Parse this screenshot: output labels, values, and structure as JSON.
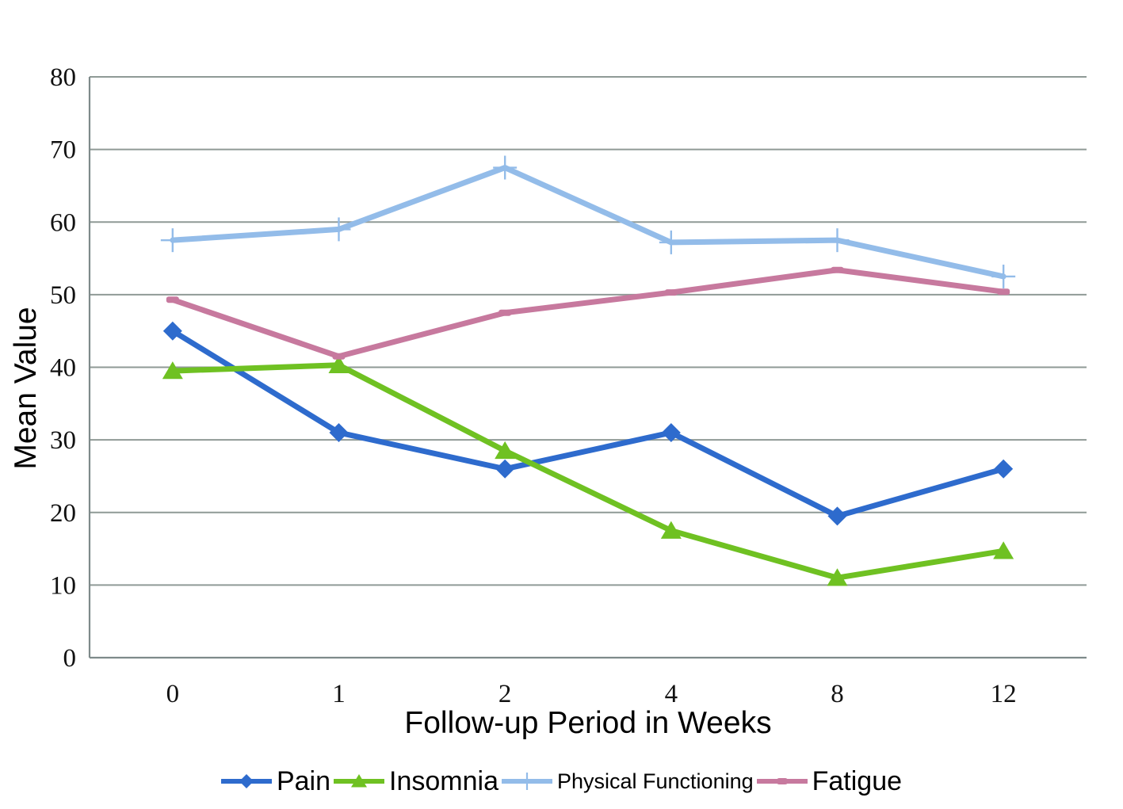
{
  "chart_data": {
    "type": "line",
    "title": "",
    "xlabel": "Follow-up Period in Weeks",
    "ylabel": "Mean Value",
    "categories": [
      "0",
      "1",
      "2",
      "4",
      "8",
      "12"
    ],
    "ylim": [
      0,
      80
    ],
    "ytick_interval": 10,
    "ytick_labels": [
      "0",
      "10",
      "20",
      "30",
      "40",
      "50",
      "60",
      "70",
      "80"
    ],
    "grid": true,
    "legend_position": "bottom",
    "series": [
      {
        "name": "Pain",
        "color": "#2e6bcd",
        "marker": "diamond",
        "values": [
          45,
          31,
          26,
          31,
          19.5,
          26
        ]
      },
      {
        "name": "Insomnia",
        "color": "#6fc122",
        "marker": "triangle",
        "values": [
          39.5,
          40.3,
          28.5,
          17.5,
          11,
          14.7
        ]
      },
      {
        "name": "Physical Functioning",
        "color": "#93bce9",
        "marker": "plus",
        "values": [
          57.5,
          59,
          67.5,
          57.2,
          57.5,
          52.5
        ]
      },
      {
        "name": "Fatigue",
        "color": "#c7799e",
        "marker": "dash",
        "values": [
          49.3,
          41.5,
          47.5,
          50.3,
          53.4,
          50.4
        ]
      }
    ],
    "styles": {
      "grid_color": "#8f9a96",
      "axis_color": "#7e8a8a",
      "text_color": "#000000",
      "background": "#ffffff"
    }
  }
}
